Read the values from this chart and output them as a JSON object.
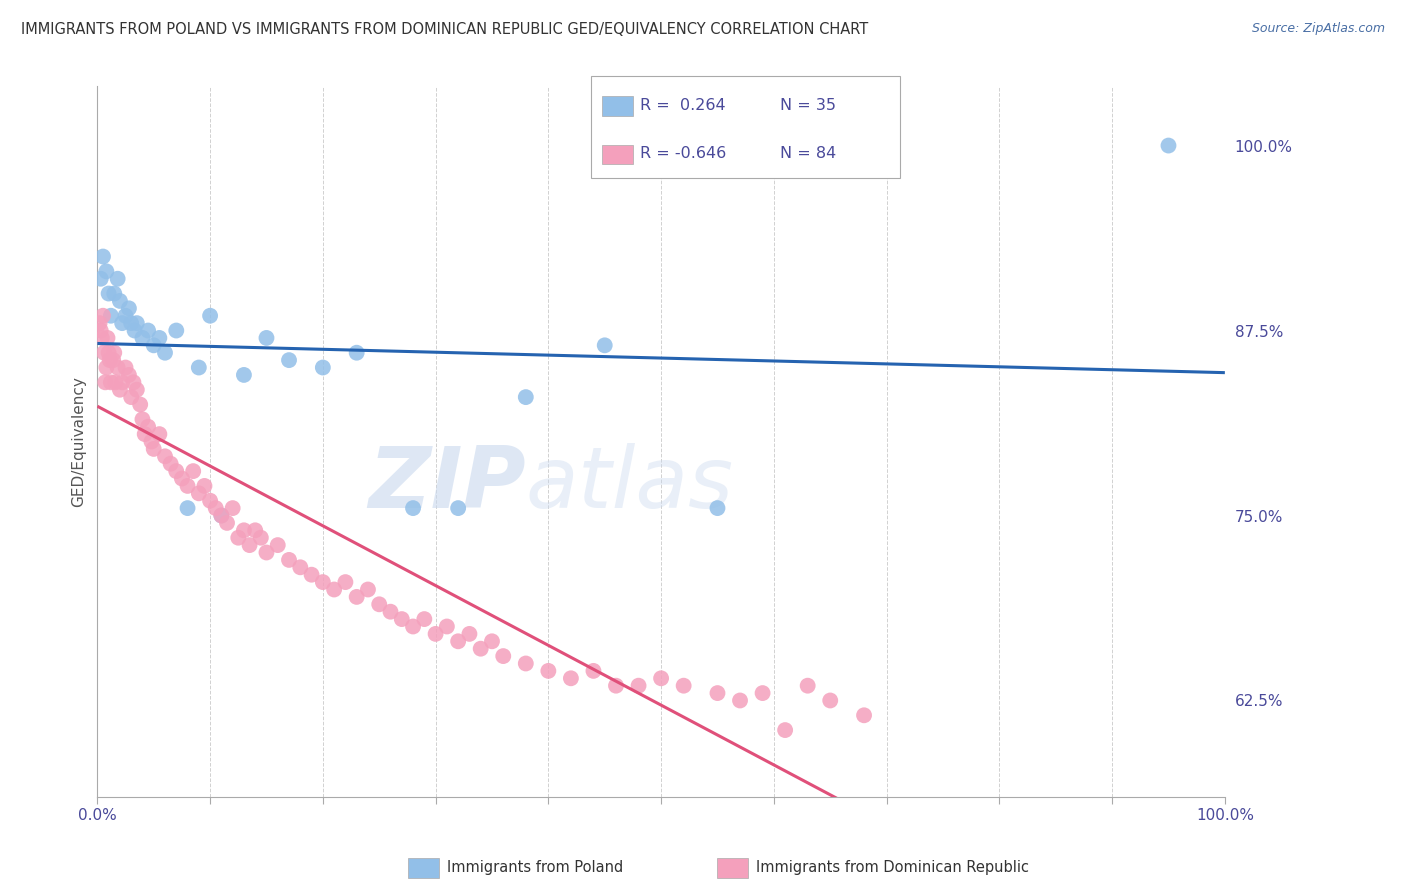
{
  "title": "IMMIGRANTS FROM POLAND VS IMMIGRANTS FROM DOMINICAN REPUBLIC GED/EQUIVALENCY CORRELATION CHART",
  "source": "Source: ZipAtlas.com",
  "ylabel": "GED/Equivalency",
  "right_yticks": [
    62.5,
    75.0,
    87.5,
    100.0
  ],
  "right_ytick_labels": [
    "62.5%",
    "75.0%",
    "87.5%",
    "100.0%"
  ],
  "xlim": [
    0,
    100
  ],
  "ylim": [
    56,
    104
  ],
  "background_color": "#ffffff",
  "grid_color": "#cccccc",
  "watermark_zip": "ZIP",
  "watermark_atlas": "atlas",
  "watermark_color_zip": "#c8d8ee",
  "watermark_color_atlas": "#c8d8ee",
  "series": [
    {
      "name": "Immigrants from Poland",
      "color": "#92bfe8",
      "line_color": "#2563b0",
      "x": [
        0.3,
        0.5,
        0.8,
        1.0,
        1.2,
        1.5,
        1.8,
        2.0,
        2.2,
        2.5,
        2.8,
        3.0,
        3.3,
        3.5,
        4.0,
        4.5,
        5.0,
        5.5,
        6.0,
        7.0,
        8.0,
        9.0,
        10.0,
        11.0,
        13.0,
        15.0,
        17.0,
        20.0,
        23.0,
        28.0,
        32.0,
        38.0,
        45.0,
        55.0,
        95.0
      ],
      "y": [
        91.0,
        92.5,
        91.5,
        90.0,
        88.5,
        90.0,
        91.0,
        89.5,
        88.0,
        88.5,
        89.0,
        88.0,
        87.5,
        88.0,
        87.0,
        87.5,
        86.5,
        87.0,
        86.0,
        87.5,
        75.5,
        85.0,
        88.5,
        75.0,
        84.5,
        87.0,
        85.5,
        85.0,
        86.0,
        75.5,
        75.5,
        83.0,
        86.5,
        75.5,
        100.0
      ]
    },
    {
      "name": "Immigrants from Dominican Republic",
      "color": "#f4a0bc",
      "line_color": "#e0507a",
      "x": [
        0.2,
        0.3,
        0.4,
        0.5,
        0.6,
        0.7,
        0.8,
        0.9,
        1.0,
        1.1,
        1.2,
        1.4,
        1.5,
        1.6,
        1.8,
        2.0,
        2.2,
        2.5,
        2.8,
        3.0,
        3.2,
        3.5,
        3.8,
        4.0,
        4.2,
        4.5,
        4.8,
        5.0,
        5.5,
        6.0,
        6.5,
        7.0,
        7.5,
        8.0,
        8.5,
        9.0,
        9.5,
        10.0,
        10.5,
        11.0,
        11.5,
        12.0,
        12.5,
        13.0,
        13.5,
        14.0,
        14.5,
        15.0,
        16.0,
        17.0,
        18.0,
        19.0,
        20.0,
        21.0,
        22.0,
        23.0,
        24.0,
        25.0,
        26.0,
        27.0,
        28.0,
        29.0,
        30.0,
        31.0,
        32.0,
        33.0,
        34.0,
        35.0,
        36.0,
        38.0,
        40.0,
        42.0,
        44.0,
        46.0,
        48.0,
        50.0,
        52.0,
        55.0,
        57.0,
        59.0,
        61.0,
        63.0,
        65.0,
        68.0
      ],
      "y": [
        88.0,
        87.5,
        87.0,
        88.5,
        86.0,
        84.0,
        85.0,
        87.0,
        86.0,
        85.5,
        84.0,
        85.5,
        86.0,
        84.0,
        85.0,
        83.5,
        84.0,
        85.0,
        84.5,
        83.0,
        84.0,
        83.5,
        82.5,
        81.5,
        80.5,
        81.0,
        80.0,
        79.5,
        80.5,
        79.0,
        78.5,
        78.0,
        77.5,
        77.0,
        78.0,
        76.5,
        77.0,
        76.0,
        75.5,
        75.0,
        74.5,
        75.5,
        73.5,
        74.0,
        73.0,
        74.0,
        73.5,
        72.5,
        73.0,
        72.0,
        71.5,
        71.0,
        70.5,
        70.0,
        70.5,
        69.5,
        70.0,
        69.0,
        68.5,
        68.0,
        67.5,
        68.0,
        67.0,
        67.5,
        66.5,
        67.0,
        66.0,
        66.5,
        65.5,
        65.0,
        64.5,
        64.0,
        64.5,
        63.5,
        63.5,
        64.0,
        63.5,
        63.0,
        62.5,
        63.0,
        60.5,
        63.5,
        62.5,
        61.5
      ]
    }
  ],
  "legend_R_blue": "R =  0.264",
  "legend_N_blue": "N = 35",
  "legend_R_pink": "R = -0.646",
  "legend_N_pink": "N = 84",
  "legend_color_blue": "#92bfe8",
  "legend_color_pink": "#f4a0bc",
  "bottom_label_poland": "Immigrants from Poland",
  "bottom_label_dr": "Immigrants from Dominican Republic",
  "title_color": "#333333",
  "source_color": "#4a6fa5",
  "axis_label_color": "#4a4a9a",
  "ylabel_color": "#555555"
}
